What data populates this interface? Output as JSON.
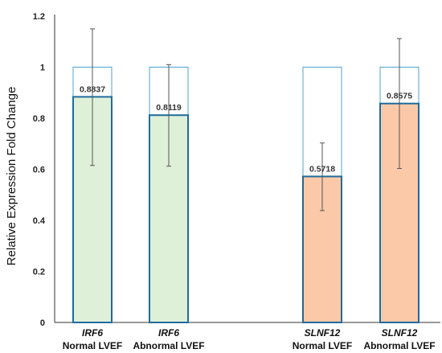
{
  "chart_data": {
    "type": "bar",
    "ylabel": "Relative Expression Fold Change",
    "ylim": [
      0,
      1.2
    ],
    "yticks": [
      "0",
      "0.2",
      "0.4",
      "0.6",
      "0.8",
      "1",
      "1.2"
    ],
    "ytick_values": [
      0,
      0.2,
      0.4,
      0.6,
      0.8,
      1.0,
      1.2
    ],
    "categories": [
      {
        "gene": "IRF6",
        "group": "Normal LVEF"
      },
      {
        "gene": "IRF6",
        "group": "Abnormal LVEF"
      },
      {
        "gene": "SLNF12",
        "group": "Normal LVEF"
      },
      {
        "gene": "SLNF12",
        "group": "Abnormal LVEF"
      }
    ],
    "values": [
      0.8837,
      0.8119,
      0.5718,
      0.8575
    ],
    "value_labels": [
      "0.8837",
      "0.8119",
      "0.5718",
      "0.8575"
    ],
    "error_low": [
      0.615,
      0.612,
      0.438,
      0.603
    ],
    "error_high": [
      1.15,
      1.01,
      0.703,
      1.112
    ],
    "reference_value": 1.0,
    "colors": {
      "irf6_fill": "#dff0d8",
      "slnf12_fill": "#fbc9a8",
      "bar_stroke": "#1f6c9e",
      "reference_stroke": "#4fa3cf",
      "error_bar": "#555555",
      "axis": "#333333"
    }
  }
}
